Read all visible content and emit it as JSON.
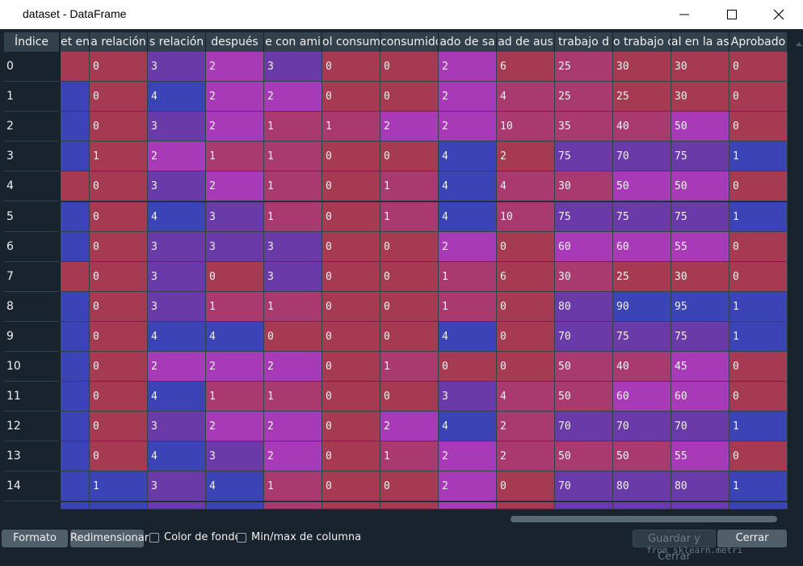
{
  "window": {
    "title": "dataset - DataFrame"
  },
  "table": {
    "index_header": "Índice",
    "columns": [
      "et en",
      "a relación",
      "s relación",
      "después",
      "e con ami",
      "ol consum",
      "consumido",
      "ado de sa",
      "ad de aus",
      "trabajo d",
      "o trabajo c",
      "al en la as",
      "Aprobado"
    ],
    "index": [
      "0",
      "1",
      "2",
      "3",
      "4",
      "5",
      "6",
      "7",
      "8",
      "9",
      "10",
      "11",
      "12",
      "13",
      "14"
    ],
    "rows": [
      [
        "",
        "0",
        "3",
        "2",
        "3",
        "0",
        "0",
        "2",
        "6",
        "25",
        "30",
        "30",
        "0"
      ],
      [
        "",
        "0",
        "4",
        "2",
        "2",
        "0",
        "0",
        "2",
        "4",
        "25",
        "25",
        "30",
        "0"
      ],
      [
        "",
        "0",
        "3",
        "2",
        "1",
        "1",
        "2",
        "2",
        "10",
        "35",
        "40",
        "50",
        "0"
      ],
      [
        "",
        "1",
        "2",
        "1",
        "1",
        "0",
        "0",
        "4",
        "2",
        "75",
        "70",
        "75",
        "1"
      ],
      [
        "",
        "0",
        "3",
        "2",
        "1",
        "0",
        "1",
        "4",
        "4",
        "30",
        "50",
        "50",
        "0"
      ],
      [
        "",
        "0",
        "4",
        "3",
        "1",
        "0",
        "1",
        "4",
        "10",
        "75",
        "75",
        "75",
        "1"
      ],
      [
        "",
        "0",
        "3",
        "3",
        "3",
        "0",
        "0",
        "2",
        "0",
        "60",
        "60",
        "55",
        "0"
      ],
      [
        "",
        "0",
        "3",
        "0",
        "3",
        "0",
        "0",
        "1",
        "6",
        "30",
        "25",
        "30",
        "0"
      ],
      [
        "",
        "0",
        "3",
        "1",
        "1",
        "0",
        "0",
        "1",
        "0",
        "80",
        "90",
        "95",
        "1"
      ],
      [
        "",
        "0",
        "4",
        "4",
        "0",
        "0",
        "0",
        "4",
        "0",
        "70",
        "75",
        "75",
        "1"
      ],
      [
        "",
        "0",
        "2",
        "2",
        "2",
        "0",
        "1",
        "0",
        "0",
        "50",
        "40",
        "45",
        "0"
      ],
      [
        "",
        "0",
        "4",
        "1",
        "1",
        "0",
        "0",
        "3",
        "4",
        "50",
        "60",
        "60",
        "0"
      ],
      [
        "",
        "0",
        "3",
        "2",
        "2",
        "0",
        "2",
        "4",
        "2",
        "70",
        "70",
        "70",
        "1"
      ],
      [
        "",
        "0",
        "4",
        "3",
        "2",
        "0",
        "1",
        "2",
        "2",
        "50",
        "50",
        "55",
        "0"
      ],
      [
        "",
        "1",
        "3",
        "4",
        "1",
        "0",
        "0",
        "2",
        "0",
        "70",
        "80",
        "80",
        "1"
      ]
    ],
    "cell_colors": [
      [
        "#a53a52",
        "#a53a52",
        "#6a3aa8",
        "#a83ab8",
        "#6a3aa8",
        "#a53a52",
        "#a53a52",
        "#a83ab8",
        "#a53a52",
        "#a83a70",
        "#a53a52",
        "#a53a52",
        "#a53a52"
      ],
      [
        "#3a44b5",
        "#a53a52",
        "#3a44b5",
        "#a83ab8",
        "#a83ab8",
        "#a53a52",
        "#a53a52",
        "#a83ab8",
        "#a83a70",
        "#a83a70",
        "#a53a52",
        "#a53a52",
        "#a53a52"
      ],
      [
        "#3a44b5",
        "#a53a52",
        "#6a3aa8",
        "#a83ab8",
        "#a83a70",
        "#a83a70",
        "#a83ab8",
        "#a83ab8",
        "#a83a70",
        "#a83a70",
        "#a83a70",
        "#a83ab8",
        "#a53a52"
      ],
      [
        "#3a44b5",
        "#a53a52",
        "#a83ab8",
        "#a83a70",
        "#a83a70",
        "#a53a52",
        "#a53a52",
        "#3a44b5",
        "#a53a52",
        "#6a3aa8",
        "#6a3aa8",
        "#6a3aa8",
        "#3a44b5"
      ],
      [
        "#a53a52",
        "#a53a52",
        "#6a3aa8",
        "#a83ab8",
        "#a83a70",
        "#a53a52",
        "#a83a70",
        "#3a44b5",
        "#a83a70",
        "#a83a70",
        "#a83ab8",
        "#a83ab8",
        "#a53a52"
      ],
      [
        "#3a44b5",
        "#a53a52",
        "#3a44b5",
        "#6a3aa8",
        "#a83a70",
        "#a53a52",
        "#a83a70",
        "#3a44b5",
        "#a83a70",
        "#6a3aa8",
        "#6a3aa8",
        "#6a3aa8",
        "#3a44b5"
      ],
      [
        "#3a44b5",
        "#a53a52",
        "#6a3aa8",
        "#6a3aa8",
        "#6a3aa8",
        "#a53a52",
        "#a53a52",
        "#a83ab8",
        "#a53a52",
        "#a83ab8",
        "#a83ab8",
        "#a83ab8",
        "#a53a52"
      ],
      [
        "#a53a52",
        "#a53a52",
        "#6a3aa8",
        "#a53a52",
        "#6a3aa8",
        "#a53a52",
        "#a53a52",
        "#a83a70",
        "#a53a52",
        "#a83a70",
        "#a53a52",
        "#a53a52",
        "#a53a52"
      ],
      [
        "#3a44b5",
        "#a53a52",
        "#6a3aa8",
        "#a83a70",
        "#a83a70",
        "#a53a52",
        "#a53a52",
        "#a83a70",
        "#a53a52",
        "#6a3aa8",
        "#3a44b5",
        "#3a44b5",
        "#3a44b5"
      ],
      [
        "#3a44b5",
        "#a53a52",
        "#3a44b5",
        "#3a44b5",
        "#a53a52",
        "#a53a52",
        "#a53a52",
        "#3a44b5",
        "#a53a52",
        "#6a3aa8",
        "#6a3aa8",
        "#6a3aa8",
        "#3a44b5"
      ],
      [
        "#3a44b5",
        "#a53a52",
        "#a83ab8",
        "#a83ab8",
        "#a83ab8",
        "#a53a52",
        "#a83a70",
        "#a53a52",
        "#a53a52",
        "#a83a70",
        "#a83a70",
        "#a83ab8",
        "#a53a52"
      ],
      [
        "#3a44b5",
        "#a53a52",
        "#3a44b5",
        "#a83a70",
        "#a83a70",
        "#a53a52",
        "#a53a52",
        "#6a3aa8",
        "#a83a70",
        "#a83a70",
        "#a83ab8",
        "#a83ab8",
        "#a53a52"
      ],
      [
        "#3a44b5",
        "#a53a52",
        "#6a3aa8",
        "#a83ab8",
        "#a83ab8",
        "#a53a52",
        "#a83ab8",
        "#3a44b5",
        "#a83a70",
        "#6a3aa8",
        "#6a3aa8",
        "#6a3aa8",
        "#3a44b5"
      ],
      [
        "#3a44b5",
        "#a53a52",
        "#3a44b5",
        "#6a3aa8",
        "#a83ab8",
        "#a53a52",
        "#a83a70",
        "#a83ab8",
        "#a83a70",
        "#a83a70",
        "#a83a70",
        "#a83ab8",
        "#a53a52"
      ],
      [
        "#3a44b5",
        "#3a44b5",
        "#6a3aa8",
        "#3a44b5",
        "#a83a70",
        "#a53a52",
        "#a53a52",
        "#a83ab8",
        "#a53a52",
        "#6a3aa8",
        "#6a3aa8",
        "#6a3aa8",
        "#3a44b5"
      ]
    ]
  },
  "footer": {
    "format_label": "Formato",
    "resize_label": "Redimensionar",
    "bg_color_label": "Color de fondo",
    "minmax_label": "Min/max de columna",
    "save_close_label": "Guardar y Cerrar",
    "close_label": "Cerrar"
  },
  "background_code": "from sklearn.metri"
}
